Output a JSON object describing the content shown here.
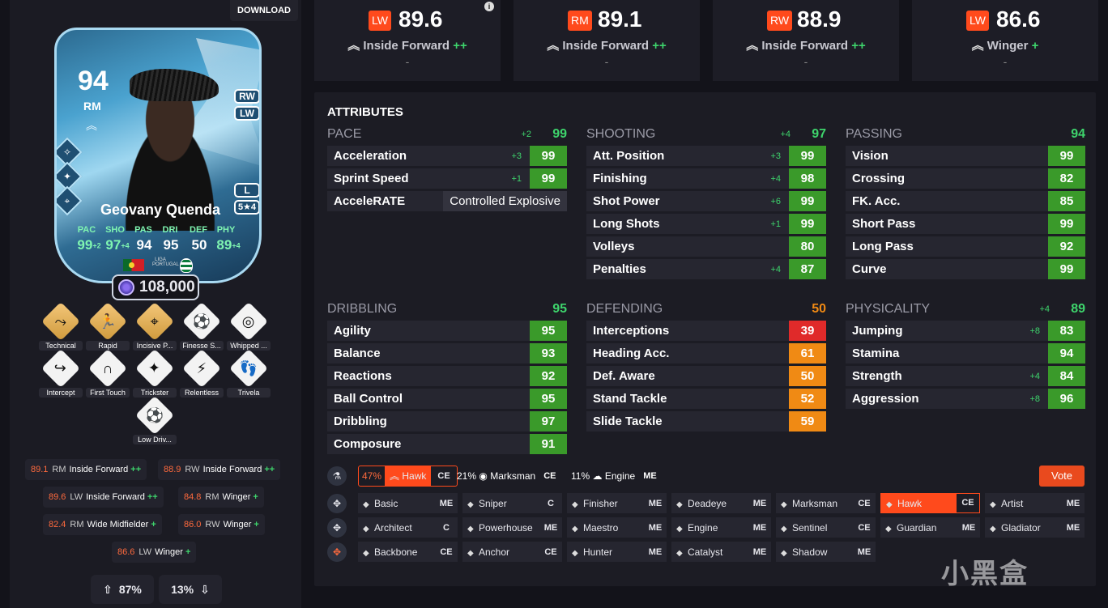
{
  "download_label": "DOWNLOAD",
  "card": {
    "rating": "94",
    "position": "RM",
    "alt_positions": [
      "RW",
      "LW"
    ],
    "name": "Geovany Quenda",
    "foot": "L",
    "skill_weak": "5★4",
    "stats": [
      {
        "k": "PAC",
        "v": "99",
        "b": "+2",
        "up": true
      },
      {
        "k": "SHO",
        "v": "97",
        "b": "+4",
        "up": true
      },
      {
        "k": "PAS",
        "v": "94",
        "b": "",
        "up": false
      },
      {
        "k": "DRI",
        "v": "95",
        "b": "",
        "up": false
      },
      {
        "k": "DEF",
        "v": "50",
        "b": "",
        "up": false
      },
      {
        "k": "PHY",
        "v": "89",
        "b": "+4",
        "up": true
      }
    ],
    "league_text": "LIGA PORTUGAL",
    "price": "108,000"
  },
  "playstyles": [
    "Technical",
    "Rapid",
    "Incisive P...",
    "Finesse S...",
    "Whipped ...",
    "Intercept",
    "First Touch",
    "Trickster",
    "Relentless",
    "Trivela",
    "Low Driv..."
  ],
  "role_chips": [
    {
      "v": "89.1",
      "p": "RM",
      "n": "Inside Forward",
      "pl": "++"
    },
    {
      "v": "88.9",
      "p": "RW",
      "n": "Inside Forward",
      "pl": "++"
    },
    {
      "v": "89.6",
      "p": "LW",
      "n": "Inside Forward",
      "pl": "++"
    },
    {
      "v": "84.8",
      "p": "RM",
      "n": "Winger",
      "pl": "+"
    },
    {
      "v": "82.4",
      "p": "RM",
      "n": "Wide Midfielder",
      "pl": "+"
    },
    {
      "v": "86.0",
      "p": "RW",
      "n": "Winger",
      "pl": "+"
    },
    {
      "v": "86.6",
      "p": "LW",
      "n": "Winger",
      "pl": "+"
    }
  ],
  "votes": {
    "up": "87%",
    "down": "13%"
  },
  "top_roles": [
    {
      "pos": "LW",
      "val": "89.6",
      "role": "Inside Forward",
      "plus": "++",
      "sub": "-"
    },
    {
      "pos": "RM",
      "val": "89.1",
      "role": "Inside Forward",
      "plus": "++",
      "sub": "-"
    },
    {
      "pos": "RW",
      "val": "88.9",
      "role": "Inside Forward",
      "plus": "++",
      "sub": "-"
    },
    {
      "pos": "LW",
      "val": "86.6",
      "role": "Winger",
      "plus": "+",
      "sub": "-"
    }
  ],
  "attributes_title": "ATTRIBUTES",
  "groups": [
    {
      "name": "PACE",
      "delta": "+2",
      "value": "99",
      "rows": [
        {
          "n": "Acceleration",
          "d": "+3",
          "v": "99",
          "c": "g"
        },
        {
          "n": "Sprint Speed",
          "d": "+1",
          "v": "99",
          "c": "g"
        },
        {
          "n": "AcceleRATE",
          "d": "",
          "v": "Controlled Explosive",
          "c": "t"
        }
      ]
    },
    {
      "name": "SHOOTING",
      "delta": "+4",
      "value": "97",
      "rows": [
        {
          "n": "Att. Position",
          "d": "+3",
          "v": "99",
          "c": "g"
        },
        {
          "n": "Finishing",
          "d": "+4",
          "v": "98",
          "c": "g"
        },
        {
          "n": "Shot Power",
          "d": "+6",
          "v": "99",
          "c": "g"
        },
        {
          "n": "Long Shots",
          "d": "+1",
          "v": "99",
          "c": "g"
        },
        {
          "n": "Volleys",
          "d": "",
          "v": "80",
          "c": "g"
        },
        {
          "n": "Penalties",
          "d": "+4",
          "v": "87",
          "c": "g"
        }
      ]
    },
    {
      "name": "PASSING",
      "delta": "",
      "value": "94",
      "rows": [
        {
          "n": "Vision",
          "d": "",
          "v": "99",
          "c": "g"
        },
        {
          "n": "Crossing",
          "d": "",
          "v": "82",
          "c": "g"
        },
        {
          "n": "FK. Acc.",
          "d": "",
          "v": "85",
          "c": "g"
        },
        {
          "n": "Short Pass",
          "d": "",
          "v": "99",
          "c": "g"
        },
        {
          "n": "Long Pass",
          "d": "",
          "v": "92",
          "c": "g"
        },
        {
          "n": "Curve",
          "d": "",
          "v": "99",
          "c": "g"
        }
      ]
    },
    {
      "name": "DRIBBLING",
      "delta": "",
      "value": "95",
      "rows": [
        {
          "n": "Agility",
          "d": "",
          "v": "95",
          "c": "g"
        },
        {
          "n": "Balance",
          "d": "",
          "v": "93",
          "c": "g"
        },
        {
          "n": "Reactions",
          "d": "",
          "v": "92",
          "c": "g"
        },
        {
          "n": "Ball Control",
          "d": "",
          "v": "95",
          "c": "g"
        },
        {
          "n": "Dribbling",
          "d": "",
          "v": "97",
          "c": "g"
        },
        {
          "n": "Composure",
          "d": "",
          "v": "91",
          "c": "g"
        }
      ]
    },
    {
      "name": "DEFENDING",
      "delta": "",
      "value": "50",
      "rows": [
        {
          "n": "Interceptions",
          "d": "",
          "v": "39",
          "c": "r"
        },
        {
          "n": "Heading Acc.",
          "d": "",
          "v": "61",
          "c": "o"
        },
        {
          "n": "Def. Aware",
          "d": "",
          "v": "50",
          "c": "o"
        },
        {
          "n": "Stand Tackle",
          "d": "",
          "v": "52",
          "c": "o"
        },
        {
          "n": "Slide Tackle",
          "d": "",
          "v": "59",
          "c": "o"
        }
      ]
    },
    {
      "name": "PHYSICALITY",
      "delta": "+4",
      "value": "89",
      "rows": [
        {
          "n": "Jumping",
          "d": "+8",
          "v": "83",
          "c": "g"
        },
        {
          "n": "Stamina",
          "d": "",
          "v": "94",
          "c": "g"
        },
        {
          "n": "Strength",
          "d": "+4",
          "v": "84",
          "c": "g"
        },
        {
          "n": "Aggression",
          "d": "+8",
          "v": "96",
          "c": "g"
        }
      ]
    }
  ],
  "chem_votes": [
    {
      "pct": "47%",
      "name": "Hawk",
      "type": "CE"
    },
    {
      "pct": "21%",
      "name": "Marksman",
      "type": "CE"
    },
    {
      "pct": "11%",
      "name": "Engine",
      "type": "ME"
    }
  ],
  "vote_label": "Vote",
  "chem_rows": [
    [
      {
        "n": "Basic",
        "t": "ME"
      },
      {
        "n": "Sniper",
        "t": "C"
      },
      {
        "n": "Finisher",
        "t": "ME"
      },
      {
        "n": "Deadeye",
        "t": "ME"
      },
      {
        "n": "Marksman",
        "t": "CE"
      },
      {
        "n": "Hawk",
        "t": "CE",
        "sel": true
      },
      {
        "n": "Artist",
        "t": "ME"
      }
    ],
    [
      {
        "n": "Architect",
        "t": "C"
      },
      {
        "n": "Powerhouse",
        "t": "ME"
      },
      {
        "n": "Maestro",
        "t": "ME"
      },
      {
        "n": "Engine",
        "t": "ME"
      },
      {
        "n": "Sentinel",
        "t": "CE"
      },
      {
        "n": "Guardian",
        "t": "ME"
      },
      {
        "n": "Gladiator",
        "t": "ME"
      }
    ],
    [
      {
        "n": "Backbone",
        "t": "CE"
      },
      {
        "n": "Anchor",
        "t": "CE"
      },
      {
        "n": "Hunter",
        "t": "ME"
      },
      {
        "n": "Catalyst",
        "t": "ME"
      },
      {
        "n": "Shadow",
        "t": "ME"
      }
    ]
  ],
  "watermark": "小黑盒"
}
